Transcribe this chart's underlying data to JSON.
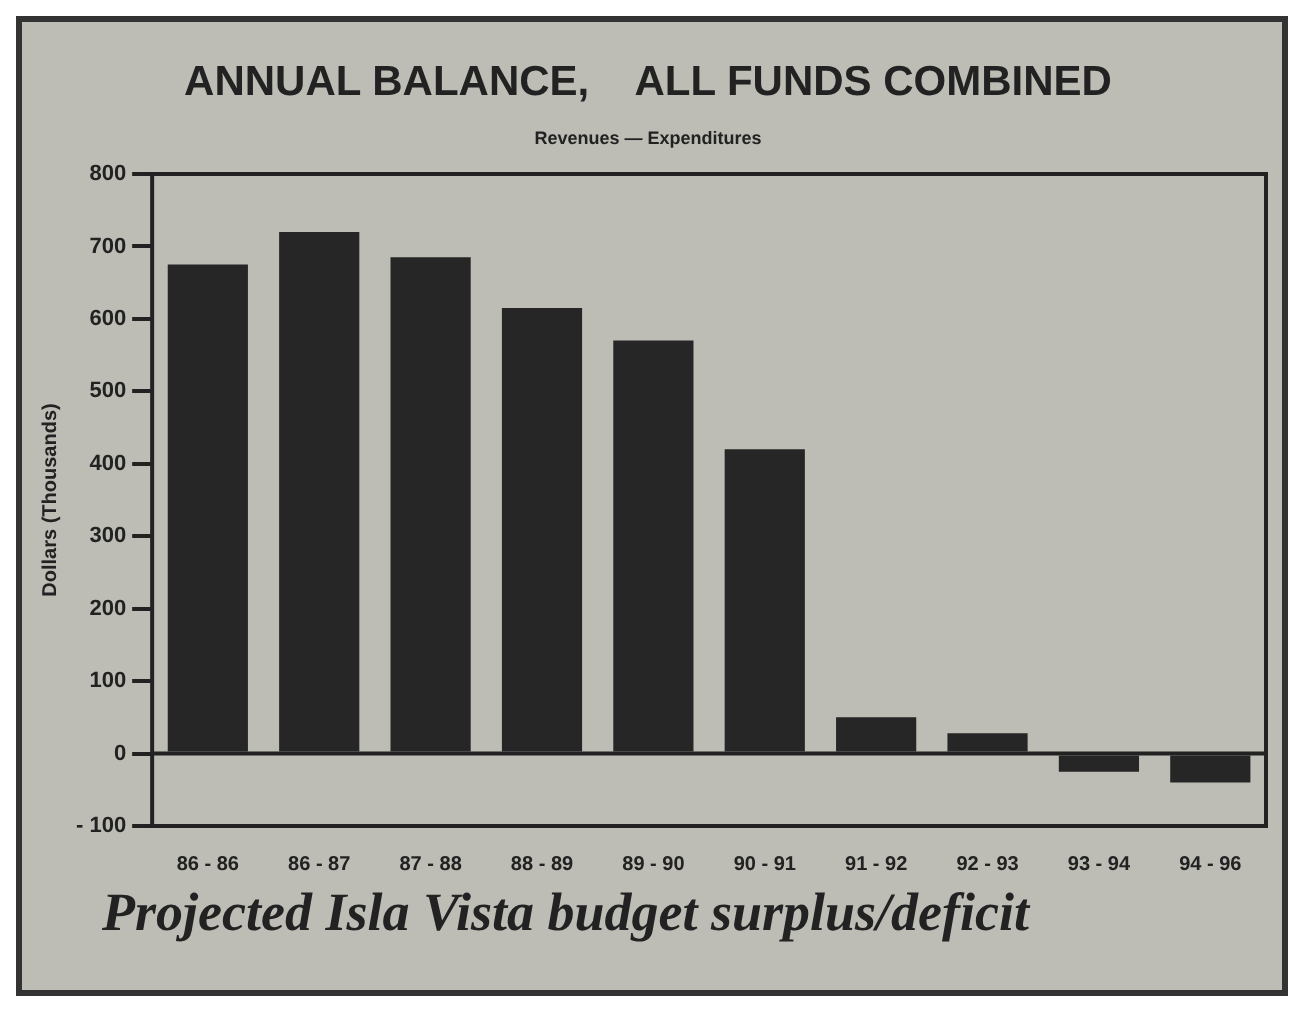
{
  "chart_data": {
    "type": "bar",
    "title": "ANNUAL BALANCE,    ALL FUNDS COMBINED",
    "subtitle": "Revenues — Expenditures",
    "ylabel": "Dollars (Thousands)",
    "categories": [
      "86 - 86",
      "86 - 87",
      "87 - 88",
      "88 - 89",
      "89 - 90",
      "90 - 91",
      "91 - 92",
      "92 - 93",
      "93 - 94",
      "94 - 96"
    ],
    "values": [
      675,
      720,
      685,
      615,
      570,
      420,
      50,
      28,
      -25,
      -40
    ],
    "color": "#262626",
    "ylim": [
      -100,
      800
    ],
    "yticks": [
      {
        "value": -100,
        "label": "- 100"
      },
      0,
      100,
      200,
      300,
      400,
      500,
      600,
      700,
      800
    ],
    "grid": false,
    "legend": false,
    "ref_lines": [
      {
        "axis": "y",
        "value": 0
      }
    ],
    "annotations": [
      "Projected Isla Vista budget surplus/deficit"
    ]
  }
}
